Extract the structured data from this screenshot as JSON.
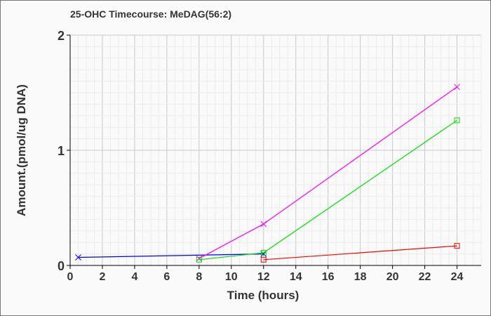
{
  "chart_data": {
    "type": "line",
    "title": "25-OHC Timecourse: MeDAG(56:2)",
    "xlabel": "Time (hours)",
    "ylabel": "Amount.(pmol/ug DNA)",
    "xlim": [
      0,
      25.5
    ],
    "ylim": [
      0,
      2
    ],
    "xticks": [
      0,
      2,
      4,
      6,
      8,
      10,
      12,
      14,
      16,
      18,
      20,
      22,
      24
    ],
    "yticks": [
      0,
      1,
      2
    ],
    "grid": true,
    "series": [
      {
        "color": "#0000ff",
        "marker": "x",
        "points": [
          [
            0.5,
            0.07
          ],
          [
            12,
            0.1
          ]
        ]
      },
      {
        "color": "#ff00ff",
        "marker": "x",
        "points": [
          [
            8,
            0.06
          ],
          [
            12,
            0.36
          ],
          [
            24,
            1.55
          ]
        ]
      },
      {
        "color": "#00e000",
        "marker": "square",
        "points": [
          [
            8,
            0.05
          ],
          [
            12,
            0.11
          ],
          [
            24,
            1.26
          ]
        ]
      },
      {
        "color": "#ff0000",
        "marker": "square",
        "points": [
          [
            12,
            0.05
          ],
          [
            24,
            0.17
          ]
        ]
      }
    ]
  }
}
